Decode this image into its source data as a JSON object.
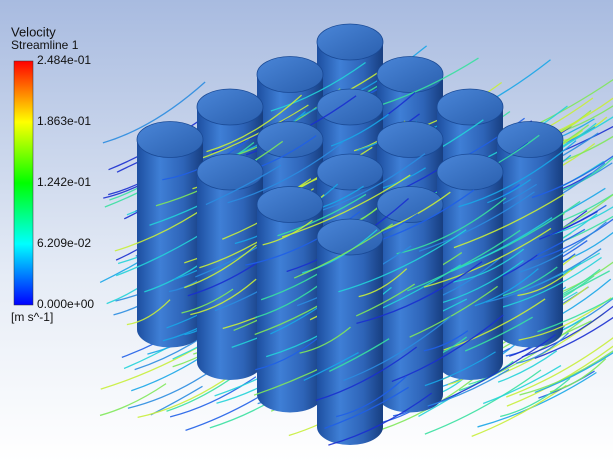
{
  "legend": {
    "title": "Velocity",
    "subtitle": "Streamline 1",
    "labels": [
      "2.484e-01",
      "1.863e-01",
      "1.242e-01",
      "6.209e-02",
      "0.000e+00"
    ],
    "unit": "[m s^-1]"
  }
}
